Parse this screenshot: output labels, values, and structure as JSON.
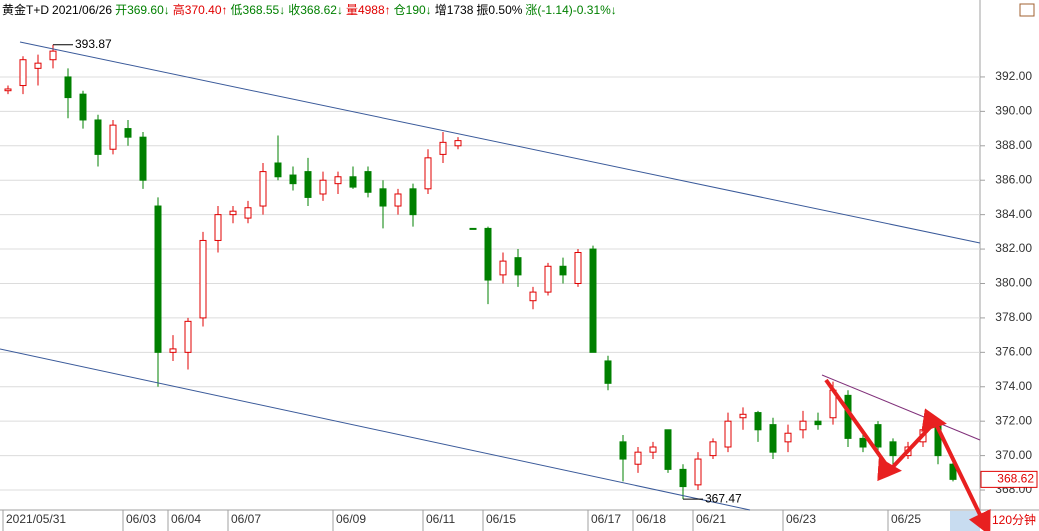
{
  "header": {
    "instrument": "黄金T+D",
    "date": "2021/06/26",
    "items": [
      {
        "text": "开369.60↓",
        "color": "#008000"
      },
      {
        "text": "高370.40↑",
        "color": "#e00000"
      },
      {
        "text": "低368.55↓",
        "color": "#008000"
      },
      {
        "text": "收368.62↓",
        "color": "#008000"
      },
      {
        "text": "量4988↑",
        "color": "#e00000"
      },
      {
        "text": "仓190↓",
        "color": "#008000"
      },
      {
        "text": "增1738",
        "color": "#000000"
      },
      {
        "text": "振0.50%",
        "color": "#000000"
      },
      {
        "text": "涨(-1.14)-0.31%↓",
        "color": "#008000"
      }
    ]
  },
  "chart_data": {
    "type": "candlestick",
    "categories": [
      "2021/05/31",
      null,
      null,
      null,
      null,
      null,
      null,
      null,
      "06/03",
      null,
      null,
      "06/04",
      null,
      null,
      null,
      "06/07",
      null,
      null,
      null,
      null,
      null,
      null,
      "06/09",
      null,
      null,
      null,
      null,
      null,
      "06/11",
      null,
      null,
      null,
      "06/15",
      null,
      null,
      null,
      null,
      null,
      null,
      "06/17",
      null,
      null,
      "06/18",
      null,
      null,
      null,
      "06/21",
      null,
      null,
      null,
      null,
      null,
      "06/23",
      null,
      null,
      null,
      null,
      null,
      null,
      "06/25",
      null,
      null,
      null,
      null
    ],
    "open": [
      391.2,
      391.5,
      392.5,
      393,
      392,
      391,
      389.5,
      387.8,
      389,
      388.5,
      384.5,
      376,
      376,
      378,
      382.5,
      384,
      383.8,
      384.5,
      387,
      386.3,
      386.5,
      385.2,
      385.8,
      386.2,
      386.5,
      385.5,
      384.5,
      385.5,
      385.5,
      387.5,
      388,
      383.2,
      383.2,
      380.5,
      381.5,
      379,
      379.5,
      381,
      380,
      382,
      375.5,
      370.8,
      369.5,
      370.2,
      371.5,
      369.2,
      368.3,
      370,
      370.5,
      372.2,
      372.5,
      371.8,
      370.8,
      371.5,
      372,
      372.2,
      373.5,
      371,
      371.8,
      370.8,
      370,
      370.8,
      371.8,
      369.5
    ],
    "high": [
      391.5,
      393.2,
      393.3,
      393.87,
      392.5,
      391.2,
      389.8,
      389.5,
      389.5,
      388.8,
      385,
      377,
      378,
      383,
      384.5,
      384.5,
      384.8,
      387,
      388.6,
      386.8,
      387.3,
      386.5,
      386.5,
      386.8,
      386.8,
      386,
      385.5,
      385.8,
      387.8,
      388.8,
      388.5,
      383.2,
      383.3,
      381.8,
      382,
      379.8,
      381.2,
      381.5,
      382,
      382.2,
      375.8,
      371.2,
      370.5,
      370.8,
      371.5,
      369.5,
      370.2,
      371,
      372.5,
      372.8,
      372.6,
      372.2,
      371.8,
      372.6,
      372.5,
      374.3,
      373.8,
      371.5,
      372,
      371,
      370.8,
      371.8,
      372,
      369.8
    ],
    "low": [
      391,
      391,
      391.5,
      392.5,
      389.6,
      389,
      386.8,
      387.5,
      388,
      385.5,
      374,
      375.5,
      375,
      377.5,
      381.8,
      383.5,
      383.5,
      384,
      386,
      385.4,
      384.5,
      384.8,
      385.2,
      385.5,
      385,
      383.2,
      384,
      383.3,
      385.2,
      387,
      387.8,
      383.2,
      378.8,
      380,
      379.8,
      378.5,
      379.3,
      380,
      379.8,
      376,
      373.8,
      368.5,
      369,
      369.8,
      369,
      367.47,
      368,
      369.8,
      370.2,
      371.5,
      370.8,
      369.8,
      370.2,
      371,
      371.5,
      371.8,
      370.5,
      370.2,
      370,
      369.5,
      369.8,
      370.5,
      369.5,
      368.5
    ],
    "close": [
      391.3,
      393,
      392.8,
      393.5,
      390.8,
      389.5,
      387.5,
      389.2,
      388.5,
      386,
      376,
      376.2,
      377.8,
      382.5,
      384,
      384.2,
      384.4,
      386.5,
      386.2,
      385.8,
      385,
      386,
      386.2,
      385.6,
      385.3,
      384.5,
      385.2,
      384,
      387.3,
      388.2,
      388.3,
      383.2,
      380.2,
      381.3,
      380.5,
      379.5,
      381,
      380.5,
      381.8,
      376,
      374.2,
      369.8,
      370.2,
      370.5,
      369.2,
      368.2,
      369.8,
      370.8,
      372,
      372.4,
      371.5,
      370.2,
      371.3,
      372,
      371.8,
      373.8,
      371,
      370.5,
      370.5,
      370,
      370.5,
      371.5,
      370,
      368.62
    ],
    "up_color": "#e00000",
    "down_color": "#008000",
    "ylim": [
      366.84,
      396.47
    ],
    "yticks": [
      {
        "value": 368,
        "label": "368.00"
      },
      {
        "value": 370,
        "label": "370.00"
      },
      {
        "value": 372,
        "label": "372.00"
      },
      {
        "value": 374,
        "label": "374.00"
      },
      {
        "value": 376,
        "label": "376.00"
      },
      {
        "value": 378,
        "label": "378.00"
      },
      {
        "value": 380,
        "label": "380.00"
      },
      {
        "value": 382,
        "label": "382.00"
      },
      {
        "value": 384,
        "label": "384.00"
      },
      {
        "value": 386,
        "label": "386.00"
      },
      {
        "value": 388,
        "label": "388.00"
      },
      {
        "value": 390,
        "label": "390.00"
      },
      {
        "value": 392,
        "label": "392.00"
      }
    ],
    "grid": true,
    "annotations": [
      {
        "text": "393.87",
        "value": 393.87,
        "index": 3
      },
      {
        "text": "367.47",
        "value": 367.47,
        "index": 45
      }
    ],
    "last_price": {
      "text": "368.62",
      "value": 368.62
    },
    "period": "120分钟"
  }
}
